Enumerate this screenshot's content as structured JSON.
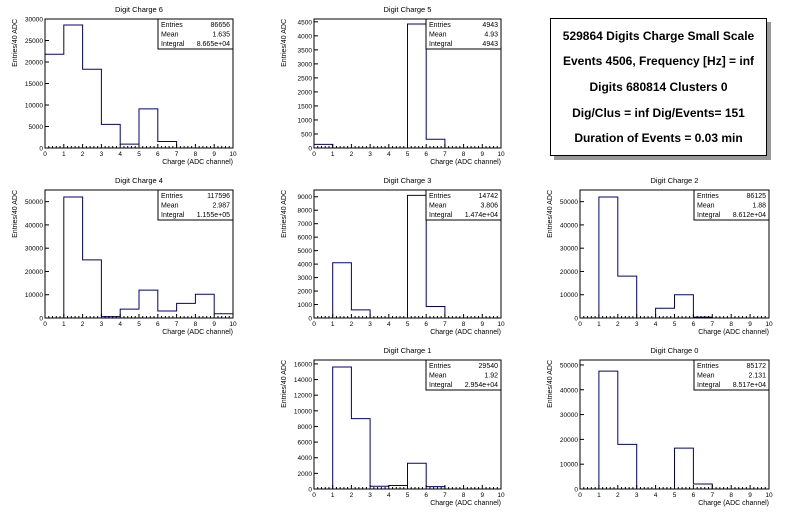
{
  "info": {
    "lines": [
      "529864 Digits Charge Small Scale",
      "Events 4506, Frequency [Hz] = inf",
      "Digits 680814 Clusters 0",
      "Dig/Clus = inf Dig/Events= 151",
      "Duration of Events = 0.03 min"
    ]
  },
  "chart_data": [
    {
      "type": "bar",
      "name": "charge6",
      "title": "Digit Charge 6",
      "xlabel": "Charge (ADC channel)",
      "ylabel": "Entries/40 ADC",
      "xlim": [
        0,
        10
      ],
      "ylim": [
        0,
        30000
      ],
      "xticks": [
        0,
        1,
        2,
        3,
        4,
        5,
        6,
        7,
        8,
        9,
        10
      ],
      "yticks": [
        0,
        5000,
        10000,
        15000,
        20000,
        25000,
        30000
      ],
      "values": [
        21800,
        28600,
        18300,
        5500,
        900,
        9100,
        1500,
        0,
        0,
        0
      ],
      "stats": [
        [
          "Entries",
          "86656"
        ],
        [
          "Mean",
          "1.635"
        ],
        [
          "Integral",
          "8.665e+04"
        ]
      ]
    },
    {
      "type": "bar",
      "name": "charge5",
      "title": "Digit Charge 5",
      "xlabel": "Charge (ADC channel)",
      "ylabel": "Entries/40 ADC",
      "xlim": [
        0,
        10
      ],
      "ylim": [
        0,
        4600
      ],
      "xticks": [
        0,
        1,
        2,
        3,
        4,
        5,
        6,
        7,
        8,
        9,
        10
      ],
      "yticks": [
        0,
        500,
        1000,
        1500,
        2000,
        2500,
        3000,
        3500,
        4000,
        4500
      ],
      "values": [
        130,
        0,
        0,
        0,
        0,
        4420,
        310,
        0,
        0,
        0
      ],
      "stats": [
        [
          "Entries",
          "4943"
        ],
        [
          "Mean",
          "4.93"
        ],
        [
          "Integral",
          "4943"
        ]
      ]
    },
    {
      "type": "bar",
      "name": "charge4",
      "title": "Digit Charge 4",
      "xlabel": "Charge (ADC channel)",
      "ylabel": "Entries/40 ADC",
      "xlim": [
        0,
        10
      ],
      "ylim": [
        0,
        55000
      ],
      "xticks": [
        0,
        1,
        2,
        3,
        4,
        5,
        6,
        7,
        8,
        9,
        10
      ],
      "yticks": [
        0,
        10000,
        20000,
        30000,
        40000,
        50000
      ],
      "values": [
        0,
        52000,
        25000,
        600,
        3800,
        12000,
        3000,
        6300,
        10200,
        1800
      ],
      "stats": [
        [
          "Entries",
          "117596"
        ],
        [
          "Mean",
          "2.987"
        ],
        [
          "Integral",
          "1.155e+05"
        ]
      ]
    },
    {
      "type": "bar",
      "name": "charge3",
      "title": "Digit Charge 3",
      "xlabel": "Charge (ADC channel)",
      "ylabel": "Entries/40 ADC",
      "xlim": [
        0,
        10
      ],
      "ylim": [
        0,
        9500
      ],
      "xticks": [
        0,
        1,
        2,
        3,
        4,
        5,
        6,
        7,
        8,
        9,
        10
      ],
      "yticks": [
        0,
        1000,
        2000,
        3000,
        4000,
        5000,
        6000,
        7000,
        8000,
        9000
      ],
      "values": [
        0,
        4100,
        600,
        0,
        0,
        9100,
        850,
        0,
        0,
        0
      ],
      "stats": [
        [
          "Entries",
          "14742"
        ],
        [
          "Mean",
          "3.806"
        ],
        [
          "Integral",
          "1.474e+04"
        ]
      ]
    },
    {
      "type": "bar",
      "name": "charge2",
      "title": "Digit Charge 2",
      "xlabel": "Charge (ADC channel)",
      "ylabel": "Entries/40 ADC",
      "xlim": [
        0,
        10
      ],
      "ylim": [
        0,
        55000
      ],
      "xticks": [
        0,
        1,
        2,
        3,
        4,
        5,
        6,
        7,
        8,
        9,
        10
      ],
      "yticks": [
        0,
        10000,
        20000,
        30000,
        40000,
        50000
      ],
      "values": [
        0,
        52000,
        18000,
        0,
        4200,
        10000,
        400,
        0,
        0,
        0
      ],
      "stats": [
        [
          "Entries",
          "86125"
        ],
        [
          "Mean",
          "1.88"
        ],
        [
          "Integral",
          "8.612e+04"
        ]
      ]
    },
    {
      "type": "bar",
      "name": "charge1",
      "title": "Digit Charge 1",
      "xlabel": "Charge (ADC channel)",
      "ylabel": "Entries/40 ADC",
      "xlim": [
        0,
        10
      ],
      "ylim": [
        0,
        16500
      ],
      "xticks": [
        0,
        1,
        2,
        3,
        4,
        5,
        6,
        7,
        8,
        9,
        10
      ],
      "yticks": [
        0,
        2000,
        4000,
        6000,
        8000,
        10000,
        12000,
        14000,
        16000
      ],
      "values": [
        0,
        15600,
        9000,
        350,
        450,
        3300,
        300,
        0,
        0,
        0
      ],
      "stats": [
        [
          "Entries",
          "29540"
        ],
        [
          "Mean",
          "1.92"
        ],
        [
          "Integral",
          "2.954e+04"
        ]
      ]
    },
    {
      "type": "bar",
      "name": "charge0",
      "title": "Digit Charge 0",
      "xlabel": "Charge (ADC channel)",
      "ylabel": "Entries/40 ADC",
      "xlim": [
        0,
        10
      ],
      "ylim": [
        0,
        52000
      ],
      "xticks": [
        0,
        1,
        2,
        3,
        4,
        5,
        6,
        7,
        8,
        9,
        10
      ],
      "yticks": [
        0,
        10000,
        20000,
        30000,
        40000,
        50000
      ],
      "values": [
        0,
        47500,
        18000,
        0,
        0,
        16500,
        2000,
        0,
        0,
        0
      ],
      "stats": [
        [
          "Entries",
          "85172"
        ],
        [
          "Mean",
          "2.131"
        ],
        [
          "Integral",
          "8.517e+04"
        ]
      ]
    }
  ]
}
